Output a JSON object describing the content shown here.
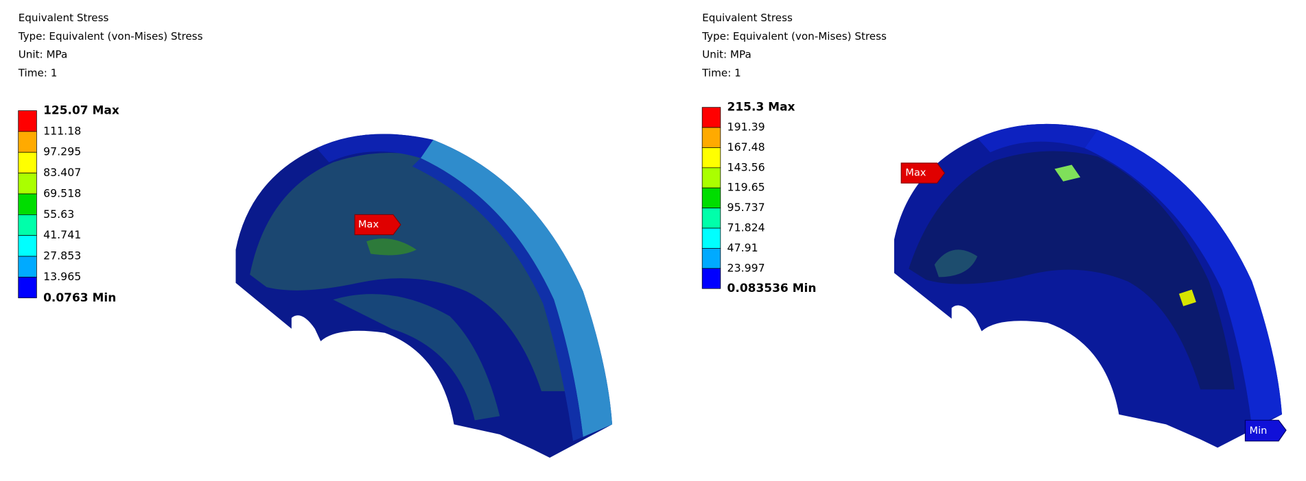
{
  "panels": [
    {
      "title": "Equivalent Stress",
      "type": "Type: Equivalent (von-Mises) Stress",
      "unit": "Unit: MPa",
      "time": "Time: 1",
      "legend": [
        "125.07 Max",
        "111.18",
        "97.295",
        "83.407",
        "69.518",
        "55.63",
        "41.741",
        "27.853",
        "13.965",
        "0.0763 Min"
      ],
      "probes": [
        "Max"
      ]
    },
    {
      "title": "Equivalent Stress",
      "type": "Type: Equivalent (von-Mises) Stress",
      "unit": "Unit: MPa",
      "time": "Time: 1",
      "legend": [
        "215.3 Max",
        "191.39",
        "167.48",
        "143.56",
        "119.65",
        "95.737",
        "71.824",
        "47.91",
        "23.997",
        "0.083536 Min"
      ],
      "probes": [
        "Max",
        "Min"
      ]
    }
  ]
}
